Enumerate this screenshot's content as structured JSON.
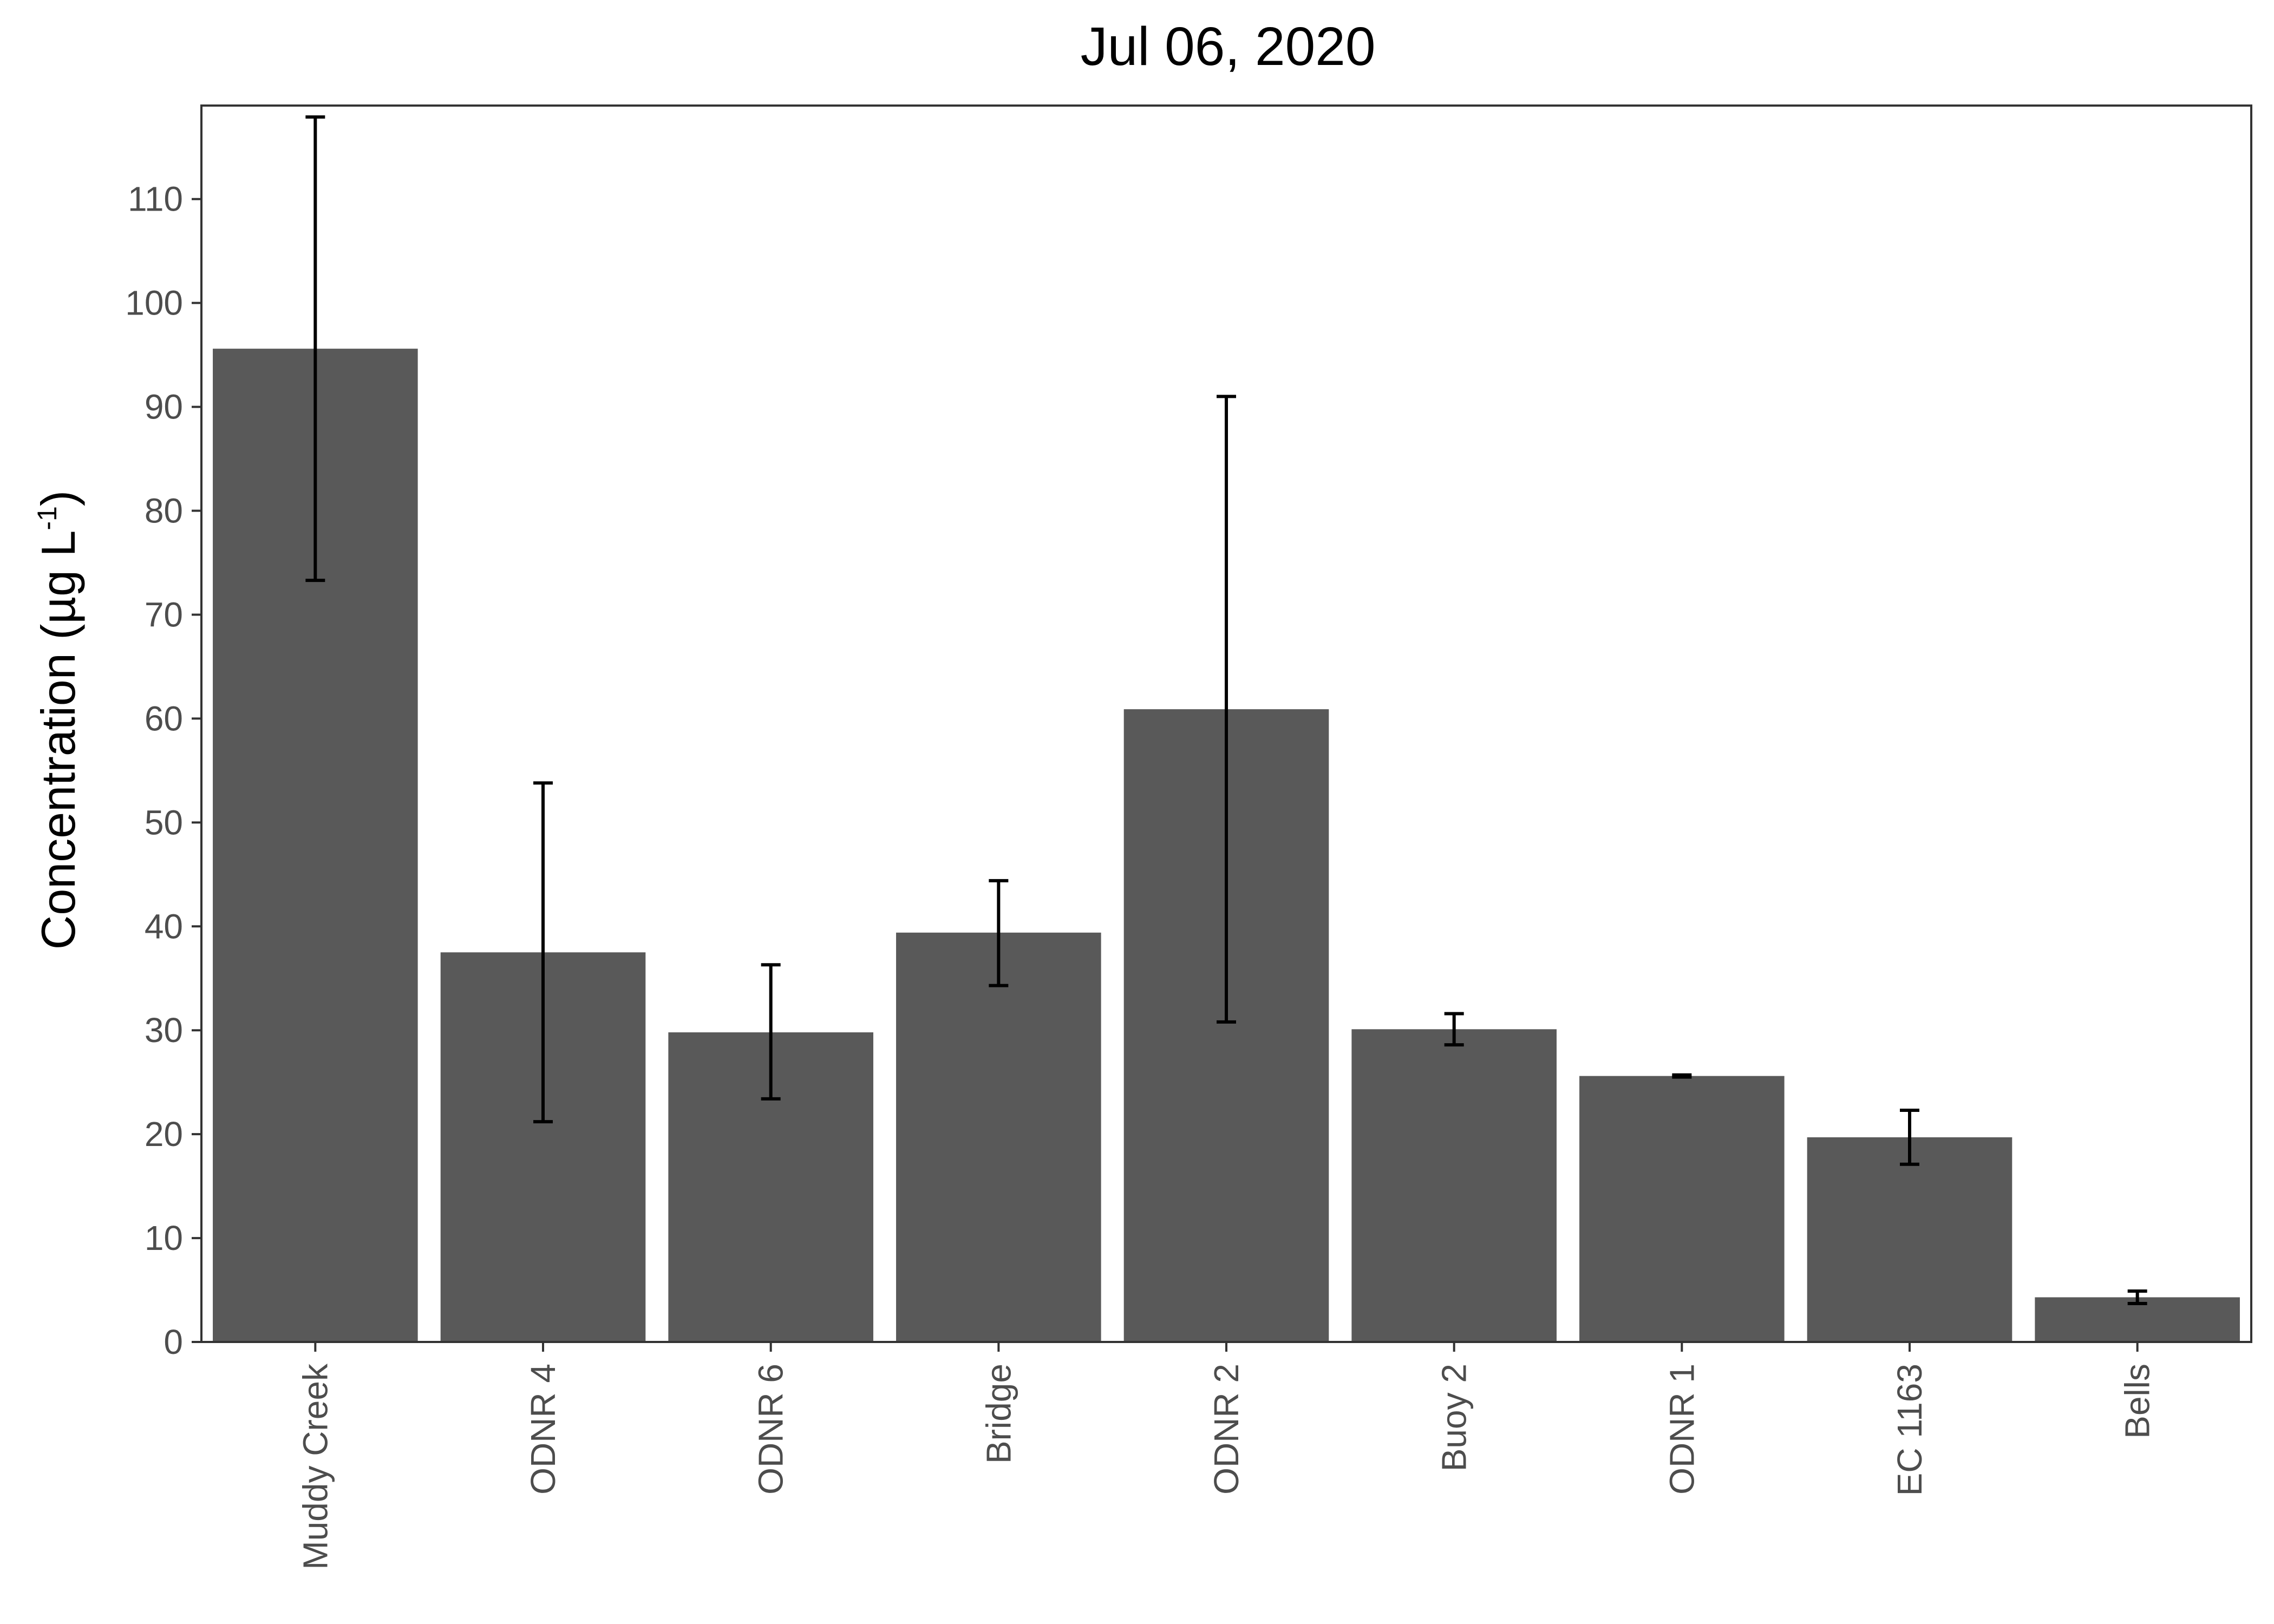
{
  "chart_data": {
    "type": "bar",
    "title": "Jul 06, 2020",
    "xlabel": "",
    "ylabel": "Concentration (µg L",
    "ylabel_superscript": "-1",
    "ylabel_suffix": ")",
    "categories": [
      "Muddy Creek",
      "ODNR 4",
      "ODNR 6",
      "Bridge",
      "ODNR 2",
      "Buoy 2",
      "ODNR 1",
      "EC 1163",
      "Bells"
    ],
    "values": [
      95.6,
      37.5,
      29.8,
      39.4,
      60.9,
      30.1,
      25.6,
      19.7,
      4.3
    ],
    "error_low": [
      73.3,
      21.2,
      23.4,
      34.3,
      30.8,
      28.6,
      25.5,
      17.1,
      3.7
    ],
    "error_high": [
      117.9,
      53.8,
      36.3,
      44.4,
      91.0,
      31.6,
      25.7,
      22.3,
      4.9
    ],
    "ylim": [
      0,
      119
    ],
    "yticks": [
      0,
      10,
      20,
      30,
      40,
      50,
      60,
      70,
      80,
      90,
      100,
      110
    ],
    "grid": false,
    "legend": "none",
    "colors": {
      "bar": "#595959",
      "errorbar": "#000000",
      "axis": "#333333",
      "tick_text": "#4d4d4d"
    }
  }
}
